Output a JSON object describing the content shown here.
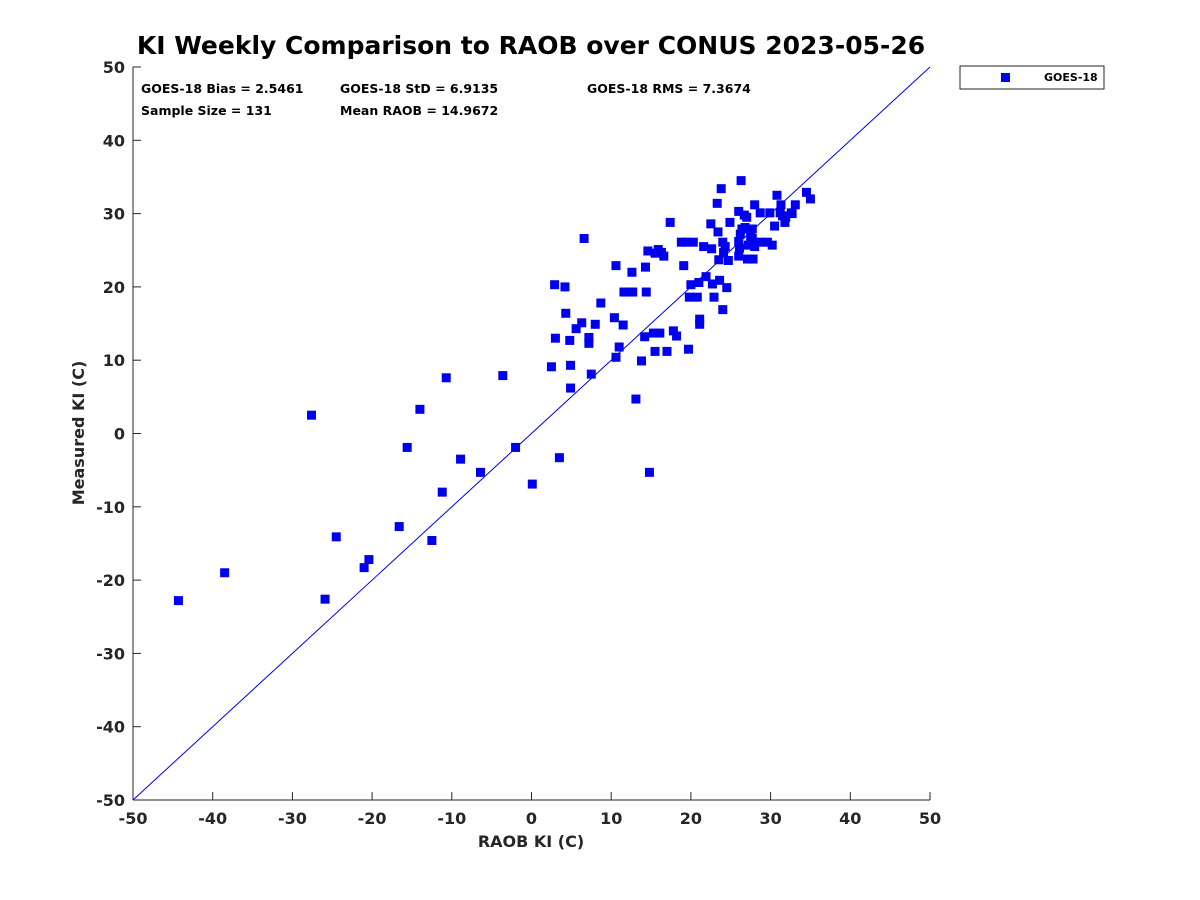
{
  "chart_data": {
    "type": "scatter",
    "title": "KI Weekly Comparison to RAOB over CONUS 2023-05-26",
    "xlabel": "RAOB KI (C)",
    "ylabel": "Measured KI (C)",
    "xlim": [
      -50,
      50
    ],
    "ylim": [
      -50,
      50
    ],
    "xticks": [
      -50,
      -40,
      -30,
      -20,
      -10,
      0,
      10,
      20,
      30,
      40,
      50
    ],
    "yticks": [
      -50,
      -40,
      -30,
      -20,
      -10,
      0,
      10,
      20,
      30,
      40,
      50
    ],
    "grid": false,
    "legend": {
      "position": "outside-top-right",
      "entries": [
        "GOES-18"
      ]
    },
    "reference_line": {
      "label": "1:1",
      "x": [
        -50,
        50
      ],
      "y": [
        -50,
        50
      ]
    },
    "colors": {
      "series": "#0000ee",
      "reference_line": "#0000ee",
      "axes": "#262626"
    },
    "stats": {
      "bias": "GOES-18 Bias = 2.5461",
      "std": "GOES-18 StD = 6.9135",
      "rms": "GOES-18 RMS = 7.3674",
      "sample_size": "Sample Size = 131",
      "mean_raob": "Mean RAOB = 14.9672"
    },
    "series": [
      {
        "name": "GOES-18",
        "marker": "square",
        "points": [
          [
            -44.3,
            -22.8
          ],
          [
            -38.5,
            -19
          ],
          [
            -27.6,
            2.5
          ],
          [
            -25.9,
            -22.6
          ],
          [
            -24.5,
            -14.1
          ],
          [
            -21,
            -18.3
          ],
          [
            -20.4,
            -17.2
          ],
          [
            -16.6,
            -12.7
          ],
          [
            -15.6,
            -1.9
          ],
          [
            -14,
            3.3
          ],
          [
            -12.5,
            -14.6
          ],
          [
            -11.2,
            -8
          ],
          [
            -10.7,
            7.6
          ],
          [
            -8.9,
            -3.5
          ],
          [
            -6.4,
            -5.3
          ],
          [
            -3.6,
            7.9
          ],
          [
            -2,
            -1.9
          ],
          [
            0.1,
            -6.9
          ],
          [
            2.5,
            9.1
          ],
          [
            2.9,
            20.3
          ],
          [
            3,
            13
          ],
          [
            3.5,
            -3.3
          ],
          [
            4.2,
            20
          ],
          [
            4.3,
            16.4
          ],
          [
            4.8,
            12.7
          ],
          [
            4.9,
            9.3
          ],
          [
            4.9,
            6.2
          ],
          [
            5.6,
            14.3
          ],
          [
            6.3,
            15.1
          ],
          [
            6.6,
            26.6
          ],
          [
            7.2,
            13.1
          ],
          [
            7.2,
            12.3
          ],
          [
            7.5,
            8.1
          ],
          [
            8,
            14.9
          ],
          [
            8.7,
            17.8
          ],
          [
            10.4,
            15.8
          ],
          [
            10.6,
            22.9
          ],
          [
            10.6,
            10.4
          ],
          [
            11,
            11.8
          ],
          [
            11.5,
            14.8
          ],
          [
            11.6,
            19.3
          ],
          [
            12.1,
            19.3
          ],
          [
            12.6,
            22
          ],
          [
            12.7,
            19.3
          ],
          [
            13.1,
            4.7
          ],
          [
            13.8,
            9.9
          ],
          [
            14.2,
            13.2
          ],
          [
            14.3,
            22.7
          ],
          [
            14.4,
            19.3
          ],
          [
            14.6,
            24.9
          ],
          [
            14.8,
            -5.3
          ],
          [
            15.3,
            13.7
          ],
          [
            15.5,
            11.2
          ],
          [
            15.5,
            24.6
          ],
          [
            15.9,
            25.1
          ],
          [
            16.1,
            13.7
          ],
          [
            16.3,
            24.7
          ],
          [
            16.6,
            24.2
          ],
          [
            17,
            11.2
          ],
          [
            17.4,
            28.8
          ],
          [
            17.8,
            14
          ],
          [
            18.2,
            13.3
          ],
          [
            18.8,
            26.1
          ],
          [
            19.1,
            22.9
          ],
          [
            19.4,
            26.1
          ],
          [
            19.7,
            11.5
          ],
          [
            19.8,
            18.6
          ],
          [
            20,
            20.3
          ],
          [
            20.3,
            26.1
          ],
          [
            20.8,
            18.6
          ],
          [
            21,
            20.6
          ],
          [
            21.1,
            15.6
          ],
          [
            21.1,
            14.9
          ],
          [
            21.6,
            25.5
          ],
          [
            21.9,
            21.4
          ],
          [
            22.5,
            28.6
          ],
          [
            22.6,
            25.2
          ],
          [
            22.7,
            20.4
          ],
          [
            22.9,
            18.6
          ],
          [
            23.3,
            31.4
          ],
          [
            23.4,
            27.5
          ],
          [
            23.5,
            23.7
          ],
          [
            23.6,
            20.9
          ],
          [
            23.8,
            33.4
          ],
          [
            24,
            16.9
          ],
          [
            24,
            26.1
          ],
          [
            24.1,
            24.7
          ],
          [
            24.3,
            25.5
          ],
          [
            24.5,
            19.9
          ],
          [
            24.7,
            23.6
          ],
          [
            24.9,
            28.8
          ],
          [
            26,
            30.3
          ],
          [
            26,
            26.2
          ],
          [
            26,
            24.2
          ],
          [
            26.1,
            25.3
          ],
          [
            26.2,
            27.2
          ],
          [
            26.3,
            34.5
          ],
          [
            26.4,
            27.9
          ],
          [
            26.7,
            29.8
          ],
          [
            26.8,
            28.1
          ],
          [
            27,
            29.5
          ],
          [
            27.1,
            23.8
          ],
          [
            27.2,
            25.7
          ],
          [
            27.5,
            26.9
          ],
          [
            27.7,
            25.9
          ],
          [
            27.7,
            26.6
          ],
          [
            27.7,
            27.9
          ],
          [
            27.8,
            23.8
          ],
          [
            28,
            25.5
          ],
          [
            28,
            31.2
          ],
          [
            28.7,
            30.1
          ],
          [
            28.8,
            26.1
          ],
          [
            29.6,
            26.1
          ],
          [
            29.9,
            30.1
          ],
          [
            30.2,
            25.7
          ],
          [
            30.5,
            28.3
          ],
          [
            30.8,
            32.5
          ],
          [
            31.2,
            30.1
          ],
          [
            31.3,
            31.2
          ],
          [
            31.5,
            29.7
          ],
          [
            31.8,
            28.8
          ],
          [
            31.9,
            29.5
          ],
          [
            32.6,
            30.1
          ],
          [
            32.7,
            30
          ],
          [
            33.1,
            31.2
          ],
          [
            34.5,
            32.9
          ],
          [
            35,
            32
          ]
        ]
      }
    ]
  }
}
